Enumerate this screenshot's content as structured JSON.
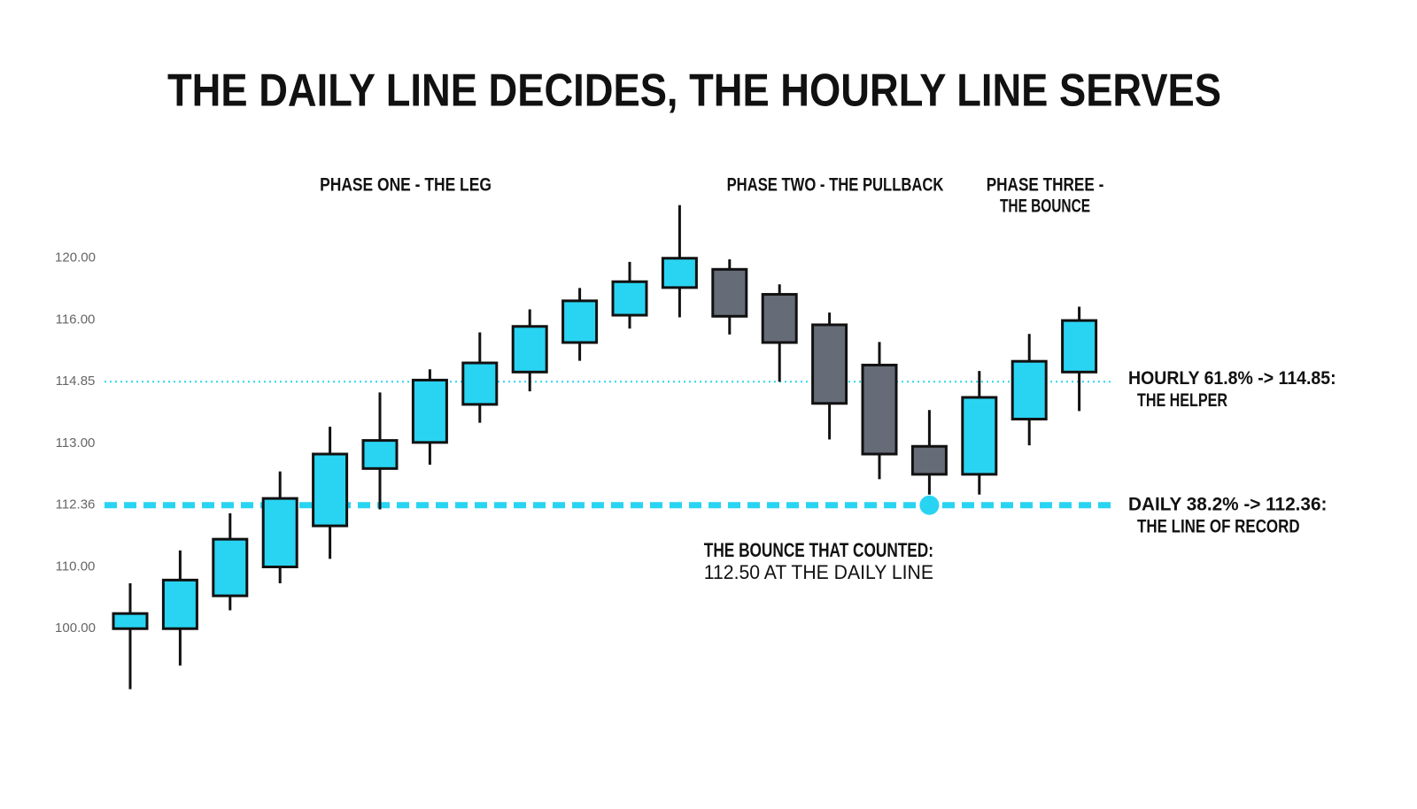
{
  "chart_data": {
    "type": "candlestick",
    "title": "THE DAILY LINE DECIDES, THE HOURLY LINE SERVES",
    "phases": [
      "PHASE ONE - THE LEG",
      "PHASE TWO - THE PULLBACK",
      [
        "PHASE THREE -",
        "THE BOUNCE"
      ]
    ],
    "open": [
      100,
      100,
      105.32,
      110,
      111.57,
      112.74,
      113.03,
      114.17,
      115.03,
      115.58,
      116.31,
      118.1,
      119.28,
      117.66,
      115.91,
      115.16,
      112.97,
      112.68,
      113.73,
      115.03
    ],
    "close": [
      102.45,
      107.87,
      111.06,
      112.43,
      112.89,
      113.09,
      114.88,
      115.2,
      115.88,
      117.24,
      118.48,
      120,
      116.24,
      115.58,
      114.2,
      112.89,
      112.68,
      114.38,
      115.23,
      115.99
    ],
    "high": [
      107.34,
      110.63,
      112.05,
      112.71,
      113.5,
      114.53,
      115.08,
      115.77,
      116.69,
      118.07,
      119.76,
      120.86,
      119.93,
      118.31,
      116.48,
      115.59,
      114,
      115.05,
      115.74,
      116.86
    ],
    "low": [
      95.1,
      97.02,
      102.98,
      107.34,
      110.31,
      112.2,
      112.78,
      113.62,
      114.56,
      115.24,
      115.84,
      116.17,
      115.73,
      114.85,
      113.12,
      112.63,
      112.47,
      112.47,
      112.98,
      113.97
    ],
    "colors": {
      "up": "#29d4f2",
      "down": "#656b77"
    },
    "ylim": [
      95,
      121
    ],
    "yticks": [
      {
        "value": 120,
        "label": "120.00"
      },
      {
        "value": 116,
        "label": "116.00"
      },
      114.85,
      {
        "value": 113,
        "label": "113.00"
      },
      112.36,
      {
        "value": 110,
        "label": "110.00"
      },
      {
        "value": 100,
        "label": "100.00"
      }
    ],
    "lines": [
      {
        "value": 114.85,
        "style": "dotted",
        "label": [
          "HOURLY 61.8% -> 114.85:",
          "THE HELPER"
        ]
      },
      {
        "value": 112.36,
        "style": "dashed",
        "label": [
          "DAILY 38.2% -> 112.36:",
          "THE LINE OF RECORD"
        ]
      }
    ],
    "annotation": [
      "THE BOUNCE THAT COUNTED:",
      "112.50 AT THE DAILY LINE"
    ]
  }
}
